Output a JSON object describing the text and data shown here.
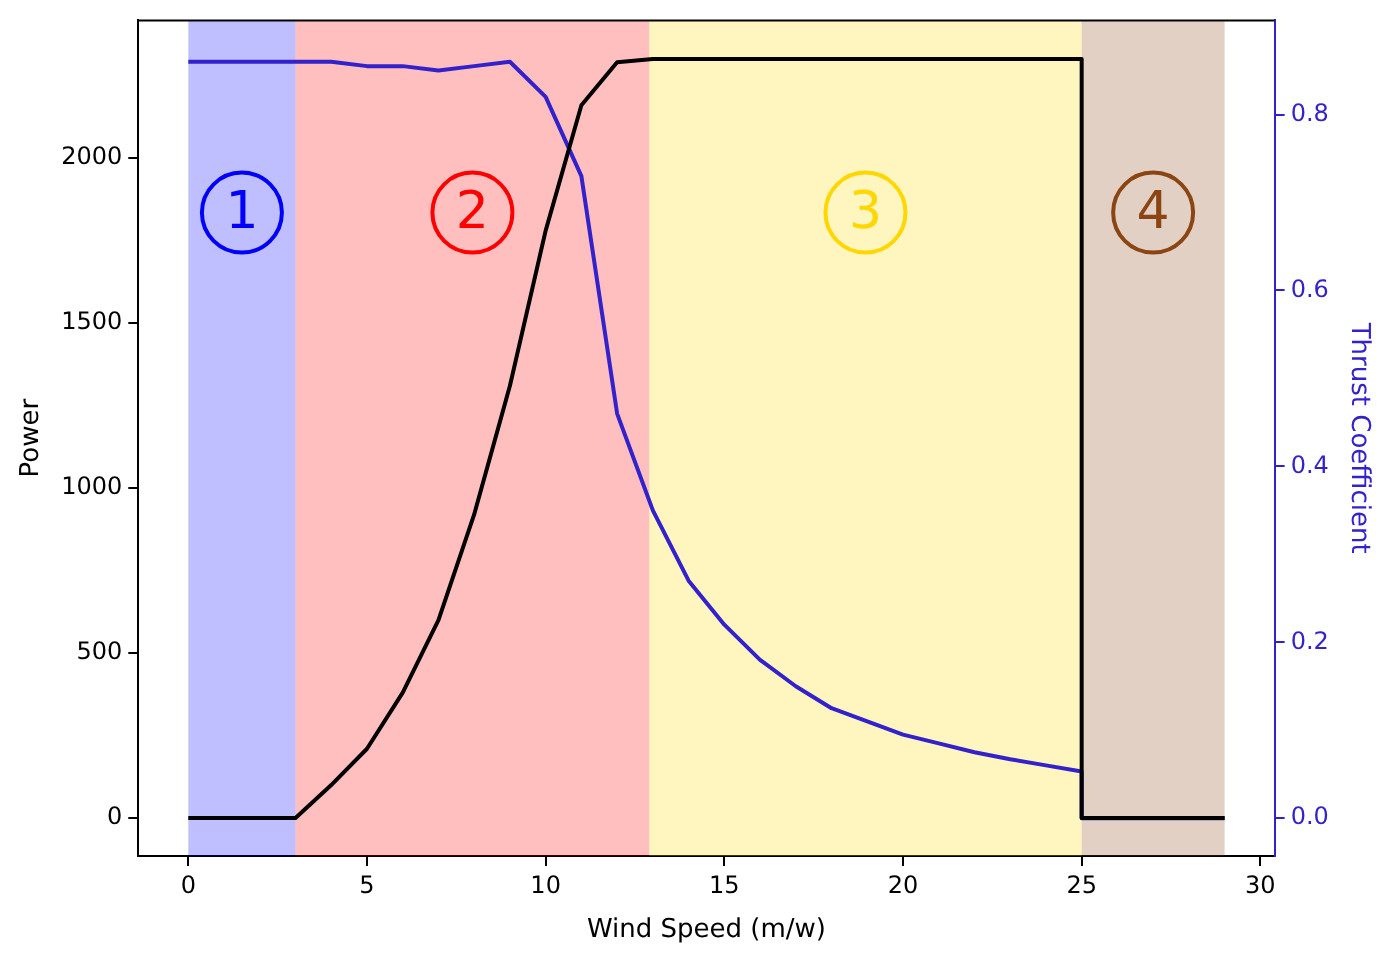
{
  "chart_data": {
    "type": "line",
    "xlabel": "Wind Speed (m/w)",
    "ylabel": "Power",
    "y2label": "Thrust Coefficient",
    "xlim": [
      -1.4,
      30.4
    ],
    "xticks": [
      0,
      5,
      10,
      15,
      20,
      25,
      30
    ],
    "ylim": [
      -115,
      2417
    ],
    "yticks": [
      0,
      500,
      1000,
      1500,
      2000
    ],
    "y2lim": [
      -0.043,
      0.907
    ],
    "y2ticks": [
      {
        "value": 0,
        "label": "0.0"
      },
      {
        "value": 0.2,
        "label": "0.2"
      },
      {
        "value": 0.4,
        "label": "0.4"
      },
      {
        "value": 0.6,
        "label": "0.6"
      },
      {
        "value": 0.8,
        "label": "0.8"
      }
    ],
    "grid": false,
    "legend": false,
    "marker": "none",
    "line_style": "solid",
    "series": [
      {
        "color": "#000000",
        "x": [
          0,
          3,
          4,
          5,
          6,
          7,
          8,
          9,
          10,
          11,
          12,
          13,
          25,
          25,
          29
        ],
        "values": [
          0,
          0,
          100,
          210,
          380,
          600,
          920,
          1310,
          1780,
          2160,
          2290,
          2300,
          2300,
          0,
          0
        ]
      },
      {
        "color": "#3322cc",
        "axis": "y2",
        "x": [
          0,
          3,
          4,
          5,
          6,
          7,
          8,
          9,
          10,
          11,
          12,
          13,
          14,
          15,
          16,
          17,
          18,
          19,
          20,
          21,
          22,
          23,
          24,
          25,
          25,
          29
        ],
        "values": [
          0.86,
          0.86,
          0.86,
          0.855,
          0.855,
          0.85,
          0.855,
          0.86,
          0.82,
          0.73,
          0.46,
          0.35,
          0.27,
          0.22,
          0.18,
          0.15,
          0.125,
          0.11,
          0.095,
          0.085,
          0.075,
          0.067,
          0.06,
          0.053,
          0,
          0
        ]
      }
    ],
    "bands": [
      {
        "axis": "x",
        "from": 0,
        "to": 3,
        "label": "1",
        "color": "#0000ff"
      },
      {
        "axis": "x",
        "from": 3,
        "to": 12.9,
        "label": "2",
        "color": "#ff0000"
      },
      {
        "axis": "x",
        "from": 12.9,
        "to": 25,
        "label": "3",
        "color": "#ffd700"
      },
      {
        "axis": "x",
        "from": 25,
        "to": 29,
        "label": "4",
        "color": "#8b4513"
      }
    ]
  }
}
